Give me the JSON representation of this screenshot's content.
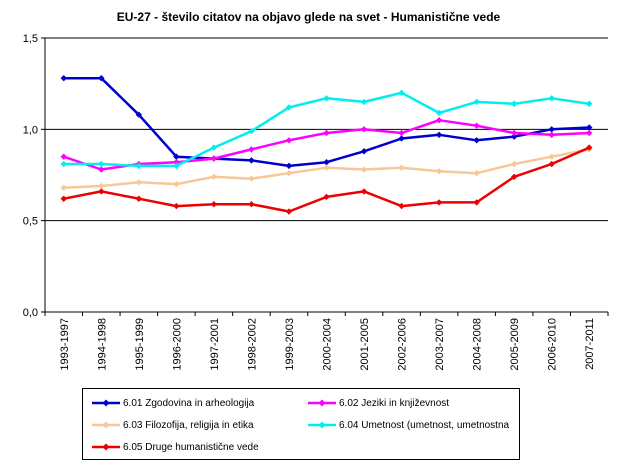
{
  "chart_data": {
    "type": "line",
    "title": "EU-27 - število citatov na objavo glede na svet - Humanistične vede",
    "categories": [
      "1993-1997",
      "1994-1998",
      "1995-1999",
      "1996-2000",
      "1997-2001",
      "1998-2002",
      "1999-2003",
      "2000-2004",
      "2001-2005",
      "2002-2006",
      "2003-2007",
      "2004-2008",
      "2005-2009",
      "2006-2010",
      "2007-2011"
    ],
    "ylim": [
      0,
      1.5
    ],
    "yticks": [
      "0,0",
      "0,5",
      "1,0",
      "1,5"
    ],
    "grid": "horizontal major gridlines at 0,5 1,0 1,5",
    "legend_position": "bottom",
    "series": [
      {
        "name": "6.01 Zgodovina in arheologija",
        "color": "#0000cc",
        "values": [
          1.28,
          1.28,
          1.08,
          0.85,
          0.84,
          0.83,
          0.8,
          0.82,
          0.88,
          0.95,
          0.97,
          0.94,
          0.96,
          1.0,
          1.01
        ]
      },
      {
        "name": "6.02 Jeziki in književnost",
        "color": "#ff00ff",
        "values": [
          0.85,
          0.78,
          0.81,
          0.82,
          0.84,
          0.89,
          0.94,
          0.98,
          1.0,
          0.98,
          1.05,
          1.02,
          0.98,
          0.97,
          0.98
        ]
      },
      {
        "name": "6.03 Filozofija, religija in etika",
        "color": "#f7c896",
        "values": [
          0.68,
          0.69,
          0.71,
          0.7,
          0.74,
          0.73,
          0.76,
          0.79,
          0.78,
          0.79,
          0.77,
          0.76,
          0.81,
          0.85,
          0.89
        ]
      },
      {
        "name": "6.04 Umetnost (umetnost, umetnostna",
        "color": "#00eeee",
        "values": [
          0.81,
          0.81,
          0.8,
          0.8,
          0.9,
          0.99,
          1.12,
          1.17,
          1.15,
          1.2,
          1.09,
          1.15,
          1.14,
          1.17,
          1.14
        ]
      },
      {
        "name": "6.05 Druge humanistične vede",
        "color": "#ee0000",
        "values": [
          0.62,
          0.66,
          0.62,
          0.58,
          0.59,
          0.59,
          0.55,
          0.63,
          0.66,
          0.58,
          0.6,
          0.6,
          0.74,
          0.81,
          0.9
        ]
      }
    ]
  }
}
